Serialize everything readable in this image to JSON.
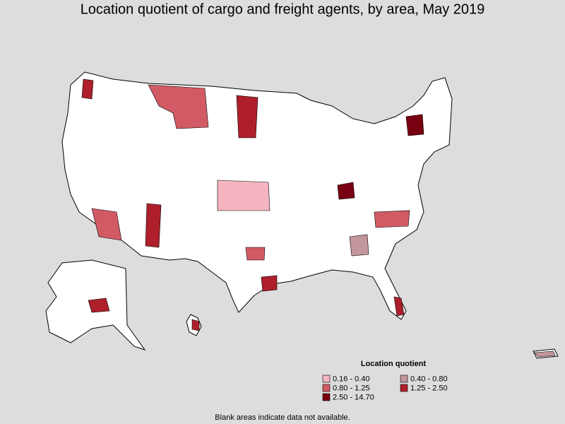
{
  "title": "Location quotient of cargo and freight agents, by area, May 2019",
  "legend": {
    "title": "Location quotient",
    "items": [
      {
        "label": "0.16 - 0.40",
        "color": "#f4b5c1"
      },
      {
        "label": "0.40 - 0.80",
        "color": "#c3969b"
      },
      {
        "label": "0.80 - 1.25",
        "color": "#d25a64"
      },
      {
        "label": "1.25 - 2.50",
        "color": "#ae1f2b"
      },
      {
        "label": "2.50 - 14.70",
        "color": "#780010"
      }
    ]
  },
  "note": "Blank areas indicate data not available."
}
